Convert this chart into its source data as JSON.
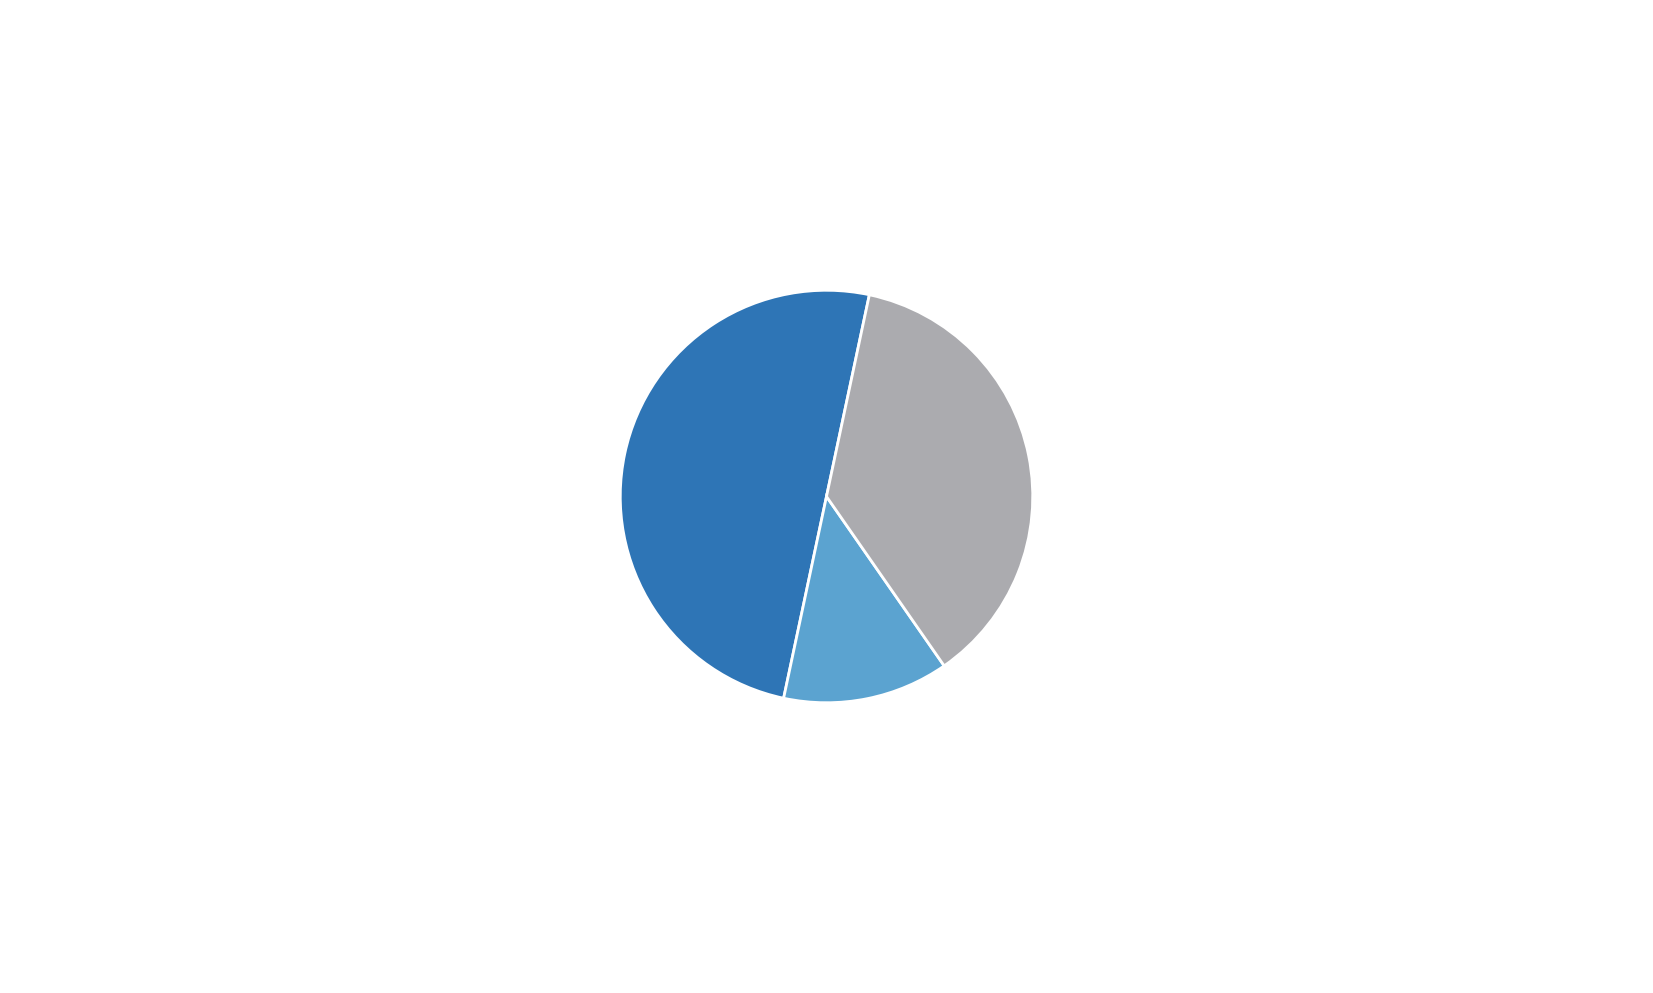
{
  "slices": [
    50,
    13,
    37
  ],
  "colors": [
    "#2E75B6",
    "#5BA3D0",
    "#ABABAF"
  ],
  "background_color": "#ffffff",
  "linewidth": 2.0,
  "linecolor": "#ffffff",
  "startangle": 78,
  "pie_size": 0.55,
  "figsize": [
    16.53,
    9.93
  ]
}
